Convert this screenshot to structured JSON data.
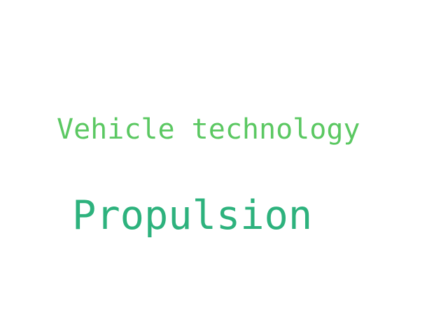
{
  "words": [
    {
      "text": "Vehicle technology",
      "color": "#5bc862"
    },
    {
      "text": "Propulsion",
      "color": "#2db27d"
    }
  ]
}
